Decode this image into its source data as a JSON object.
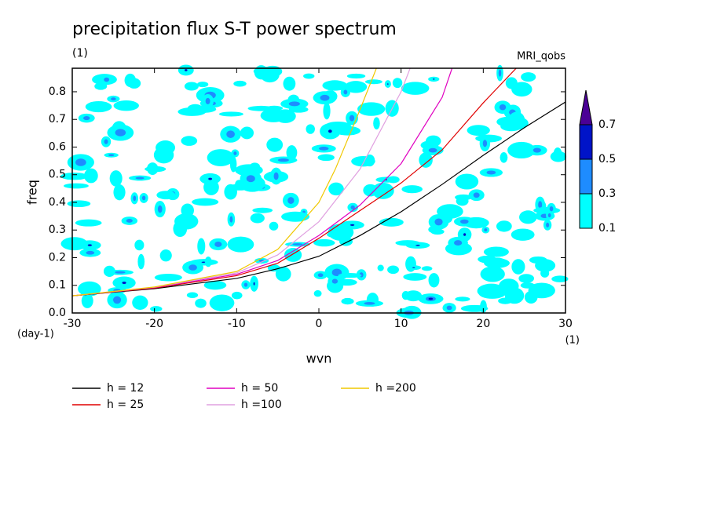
{
  "chart_data": {
    "type": "line",
    "title": "precipitation flux S-T power spectrum",
    "subtitle": "(1)",
    "annotation": "MRI_qobs",
    "y_label": "freq",
    "y_unit": "(day-1)",
    "x_label": "wvn",
    "x_unit": "(1)",
    "xlim": [
      -30,
      30
    ],
    "ylim": [
      0,
      0.885
    ],
    "xticks": [
      -30,
      -20,
      -10,
      0,
      10,
      20,
      30
    ],
    "yticks": [
      {
        "value": 0,
        "label": "0.0"
      },
      0.1,
      0.2,
      0.3,
      0.4,
      0.5,
      0.6,
      0.7,
      0.8
    ],
    "colorbar": {
      "levels": [
        0.1,
        0.3,
        0.5,
        0.7
      ],
      "colors": [
        "#00ffff",
        "#1e8cff",
        "#0014c8",
        "#4b0096"
      ]
    },
    "series": [
      {
        "name": "h = 12",
        "color": "#000000",
        "x": [
          -30,
          -20,
          -10,
          -5,
          0,
          5,
          10,
          15,
          20,
          25,
          30
        ],
        "values": [
          0.062,
          0.088,
          0.125,
          0.16,
          0.205,
          0.28,
          0.366,
          0.465,
          0.57,
          0.67,
          0.763
        ]
      },
      {
        "name": "h = 25",
        "color": "#e00000",
        "x": [
          -30,
          -20,
          -10,
          -5,
          0,
          5,
          10,
          15,
          20,
          24
        ],
        "values": [
          0.062,
          0.09,
          0.135,
          0.18,
          0.27,
          0.37,
          0.47,
          0.59,
          0.76,
          0.885
        ]
      },
      {
        "name": "h = 50",
        "color": "#e000c0",
        "x": [
          -30,
          -20,
          -10,
          -5,
          0,
          5,
          10,
          15,
          16.2
        ],
        "values": [
          0.062,
          0.092,
          0.14,
          0.19,
          0.28,
          0.39,
          0.54,
          0.78,
          0.885
        ]
      },
      {
        "name": "h =100",
        "color": "#e0a0e0",
        "x": [
          -30,
          -20,
          -10,
          -5,
          0,
          5,
          10,
          11.1
        ],
        "values": [
          0.062,
          0.093,
          0.145,
          0.21,
          0.33,
          0.52,
          0.8,
          0.885
        ]
      },
      {
        "name": "h =200",
        "color": "#f0c800",
        "x": [
          -30,
          -20,
          -10,
          -5,
          0,
          2,
          5,
          7
        ],
        "values": [
          0.062,
          0.094,
          0.15,
          0.23,
          0.4,
          0.52,
          0.735,
          0.885
        ]
      }
    ]
  }
}
